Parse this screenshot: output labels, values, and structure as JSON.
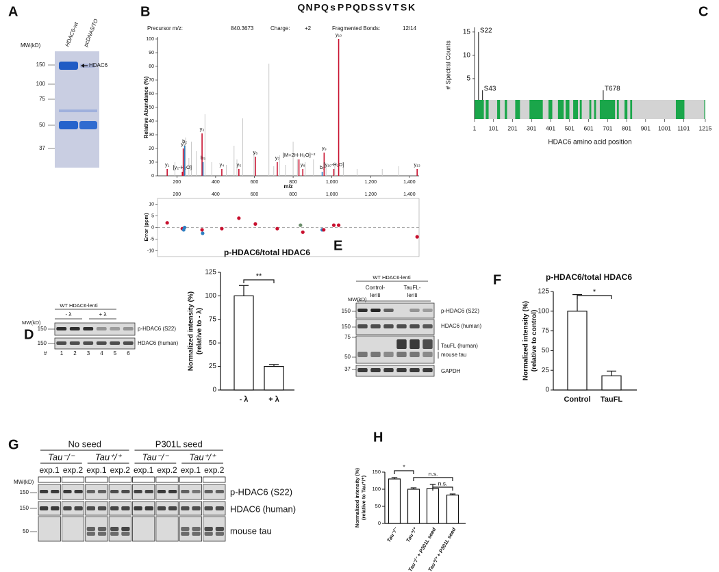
{
  "panel_a": {
    "letter": "A",
    "mw_label": "MW(kD)",
    "lanes": [
      "HDAC6-wt",
      "pcDNA5/TO"
    ],
    "markers": [
      150,
      100,
      75,
      50,
      37
    ],
    "band_label": "HDAC6"
  },
  "panel_b": {
    "letter": "B",
    "sequence": [
      "Q",
      "N",
      "P",
      "Q",
      "s",
      "P",
      "P",
      "Q",
      "D",
      "S",
      "S",
      "V",
      "T",
      "S",
      "K"
    ],
    "precursor_label": "Precursor m/z:",
    "precursor": "840.3673",
    "charge_label": "Charge:",
    "charge": "+2",
    "bonds_label": "Fragmented Bonds:",
    "bonds": "12/14",
    "spectrum": {
      "type": "bar",
      "ylabel": "Relative Abundance (%)",
      "xlabel": "m/z",
      "xlim": [
        100,
        1450
      ],
      "xticks": [
        200,
        400,
        600,
        800,
        {
          "value": 1000,
          "label": "1,000"
        },
        {
          "value": 1200,
          "label": "1,200"
        },
        {
          "value": 1400,
          "label": "1,400"
        }
      ],
      "ylim": [
        0,
        100
      ],
      "yticks": [
        0,
        10,
        20,
        30,
        40,
        50,
        60,
        70,
        80,
        90,
        100
      ],
      "peaks": {
        "labels": [
          "y₁",
          "[y₂-H₂O]",
          "y₂",
          "b₂",
          "y₃",
          "b₃",
          "y₄",
          "y₅",
          "y₆",
          "y₇",
          "[M+2H-H₂O]⁺²",
          "y₈",
          "b₈",
          "y₉",
          "[y₁₀-H₂O]",
          "y₁₀",
          "y₁₃"
        ],
        "mz": [
          150,
          228,
          233,
          240,
          330,
          335,
          432,
          520,
          605,
          718,
          830,
          850,
          950,
          960,
          1010,
          1035,
          1440
        ],
        "intensity": [
          5,
          3,
          20,
          22,
          31,
          10,
          5,
          5,
          14,
          10,
          12,
          5,
          3,
          17,
          5,
          100,
          5
        ],
        "colors": [
          "#c8102e",
          "#c8102e",
          "#c8102e",
          "#2e7fc1",
          "#c8102e",
          "#2e7fc1",
          "#c8102e",
          "#c8102e",
          "#c8102e",
          "#c8102e",
          "#c8102e",
          "#c8102e",
          "#2e7fc1",
          "#c8102e",
          "#c8102e",
          "#c8102e",
          "#c8102e"
        ]
      },
      "other_peaks": {
        "color": "#c8c8c8",
        "mz": [
          190,
          245,
          262,
          275,
          300,
          345,
          380,
          455,
          495,
          510,
          540,
          598,
          675,
          700,
          730,
          760,
          800,
          822,
          862,
          905,
          970,
          1015,
          1060,
          1130,
          1260,
          1345
        ],
        "intensity": [
          10,
          28,
          13,
          25,
          18,
          45,
          10,
          8,
          22,
          12,
          42,
          18,
          82,
          7,
          15,
          8,
          25,
          12,
          10,
          12,
          7,
          10,
          6,
          5,
          5,
          7
        ]
      }
    },
    "error": {
      "type": "scatter",
      "ylabel": "Error (ppm)",
      "ylim": [
        -12.5,
        12.5
      ],
      "yticks": [
        10,
        5,
        0,
        -5,
        -10
      ],
      "mz": [
        150,
        228,
        235,
        240,
        330,
        333,
        432,
        520,
        605,
        718,
        838,
        850,
        950,
        958,
        1010,
        1035,
        1440
      ],
      "ppm": [
        2,
        -0.5,
        -1,
        0,
        -1,
        -2.5,
        -0.5,
        4,
        1.5,
        -0.5,
        1,
        -2,
        -1,
        -1,
        1,
        1,
        -4
      ],
      "colors": [
        "#c8102e",
        "#c8102e",
        "#2e7fc1",
        "#2e7fc1",
        "#c8102e",
        "#2e7fc1",
        "#c8102e",
        "#c8102e",
        "#c8102e",
        "#c8102e",
        "#6b8e6b",
        "#c8102e",
        "#2e7fc1",
        "#c8102e",
        "#c8102e",
        "#c8102e",
        "#c8102e"
      ]
    }
  },
  "panel_c": {
    "letter": "C",
    "type": "bar",
    "ylabel": "# Spectral Counts",
    "xlabel": "HDAC6 amino acid position",
    "xlim": [
      1,
      1215
    ],
    "xticks": [
      1,
      101,
      201,
      301,
      401,
      501,
      601,
      701,
      801,
      901,
      1001,
      1101,
      1215
    ],
    "ylim": [
      0,
      16
    ],
    "yticks": [
      5,
      10,
      15
    ],
    "bar_color": "#d3d3d3",
    "coverage_color": "#1aa64a",
    "coverage_start": [
      1,
      60,
      120,
      160,
      215,
      290,
      390,
      440,
      480,
      520,
      555,
      605,
      630,
      660,
      750,
      790,
      820,
      1060,
      1210
    ],
    "coverage_end": [
      50,
      75,
      135,
      172,
      240,
      360,
      410,
      470,
      500,
      545,
      565,
      615,
      640,
      740,
      760,
      805,
      830,
      1105,
      1215
    ],
    "sites": {
      "labels": [
        "S22",
        "S43",
        "T678"
      ],
      "positions": [
        22,
        43,
        678
      ],
      "counts": [
        15,
        2.5,
        2.5
      ]
    }
  },
  "panel_d": {
    "letter": "D",
    "blot": {
      "construct": "WT HDAC6-lenti",
      "conditions": [
        "- λ",
        "+ λ"
      ],
      "mw_label": "MW(kD)",
      "markers": [
        150,
        150
      ],
      "rows": [
        "p-HDAC6 (S22)",
        "HDAC6 (human)"
      ],
      "lane_label": "#",
      "lanes": [
        "1",
        "2",
        "3",
        "4",
        "5",
        "6"
      ]
    },
    "chart": {
      "type": "bar",
      "title": "p-HDAC6/total HDAC6",
      "ylabel": [
        "Normalized intensity (%)",
        "(relative to - λ)"
      ],
      "categories": [
        "- λ",
        "+ λ"
      ],
      "values": [
        100,
        25
      ],
      "errors": [
        11,
        2
      ],
      "ylim": [
        0,
        125
      ],
      "yticks": [
        0,
        25,
        50,
        75,
        100,
        125
      ],
      "color": "#ffffff",
      "significance": [
        "**"
      ]
    }
  },
  "panel_e": {
    "letter": "E",
    "construct": "WT HDAC6-lenti",
    "groups": [
      [
        "Control-",
        "lenti"
      ],
      [
        "TauFL-",
        "lenti"
      ]
    ],
    "mw_label": "MW(kD)",
    "markers": [
      150,
      150,
      75,
      50,
      37
    ],
    "rows": [
      "p-HDAC6 (S22)",
      "HDAC6 (human)",
      "TauFL (human)",
      "mouse tau",
      "GAPDH"
    ]
  },
  "panel_f": {
    "letter": "F",
    "type": "bar",
    "title": "p-HDAC6/total HDAC6",
    "ylabel": [
      "Normalized intensity (%)",
      "(relative to control)"
    ],
    "categories": [
      "Control",
      "TauFL"
    ],
    "values": [
      100,
      18
    ],
    "errors": [
      21,
      6
    ],
    "ylim": [
      0,
      125
    ],
    "yticks": [
      0,
      25,
      50,
      75,
      100,
      125
    ],
    "color": "#ffffff",
    "significance": [
      "*"
    ]
  },
  "panel_g": {
    "letter": "G",
    "conditions": [
      "No seed",
      "P301L seed"
    ],
    "genotypes": [
      "Tau⁻/⁻",
      "Tau⁺/⁺",
      "Tau⁻/⁻",
      "Tau⁺/⁺"
    ],
    "experiments": [
      "exp.1",
      "exp.2"
    ],
    "mw_label": "MW(kD)",
    "markers": [
      150,
      150,
      50
    ],
    "rows": [
      "p-HDAC6 (S22)",
      "HDAC6 (human)",
      "mouse tau"
    ]
  },
  "panel_h": {
    "letter": "H",
    "type": "bar",
    "ylabel": [
      "Normalized intensity (%)",
      "(relative to Tau⁺/⁺)"
    ],
    "categories": [
      "Tau⁻/⁻",
      "Tau⁺/⁺",
      "Tau⁻/⁻ + P301L seed",
      "Tau⁺/⁺ + P301L seed"
    ],
    "values": [
      130,
      100,
      102,
      83
    ],
    "errors": [
      4,
      4,
      12,
      3
    ],
    "ylim": [
      0,
      150
    ],
    "yticks": [
      0,
      50,
      100,
      150
    ],
    "color": "#ffffff",
    "significance": [
      "*",
      "n.s.",
      "n.s."
    ]
  }
}
